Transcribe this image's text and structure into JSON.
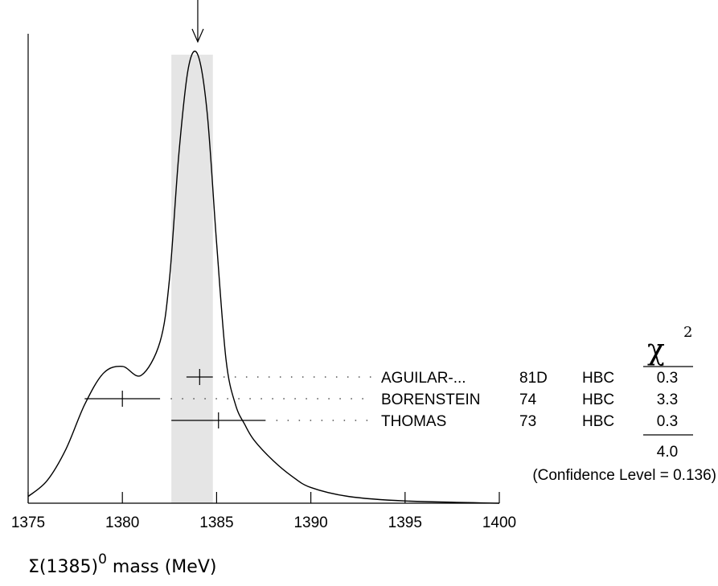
{
  "chart_data": {
    "type": "line",
    "xlabel": "Σ(1385)⁰ mass (MeV)",
    "xlim": [
      1375,
      1400
    ],
    "xticks": [
      1375,
      1380,
      1385,
      1390,
      1395,
      1400
    ],
    "weighted_average": 1384.0,
    "error_band": [
      1382.6,
      1384.8
    ],
    "ideogram": {
      "x": [
        1375.0,
        1376.0,
        1377.0,
        1378.0,
        1379.0,
        1380.0,
        1381.0,
        1382.0,
        1382.5,
        1383.0,
        1383.5,
        1384.0,
        1384.5,
        1385.0,
        1385.5,
        1386.0,
        1386.5,
        1387.0,
        1388.0,
        1389.0,
        1390.0,
        1392.0,
        1395.0,
        1400.0
      ],
      "y": [
        0.015,
        0.05,
        0.12,
        0.22,
        0.29,
        0.305,
        0.285,
        0.36,
        0.5,
        0.78,
        0.97,
        1.0,
        0.87,
        0.58,
        0.32,
        0.22,
        0.175,
        0.14,
        0.095,
        0.06,
        0.035,
        0.015,
        0.005,
        0.0
      ]
    },
    "measurements": [
      {
        "label": "AGUILAR-...",
        "year": "81D",
        "technique": "HBC",
        "chi2": "0.3",
        "value": 1384.1,
        "lo": 1383.4,
        "hi": 1384.8
      },
      {
        "label": "BORENSTEIN",
        "year": "74",
        "technique": "HBC",
        "chi2": "3.3",
        "value": 1380.0,
        "lo": 1378.0,
        "hi": 1382.0
      },
      {
        "label": "THOMAS",
        "year": "73",
        "technique": "HBC",
        "chi2": "0.3",
        "value": 1385.1,
        "lo": 1382.6,
        "hi": 1387.6
      }
    ],
    "chi2_header": "χ",
    "chi2_power": "2",
    "chi2_total": "4.0",
    "confidence": "(Confidence Level = 0.136)"
  }
}
